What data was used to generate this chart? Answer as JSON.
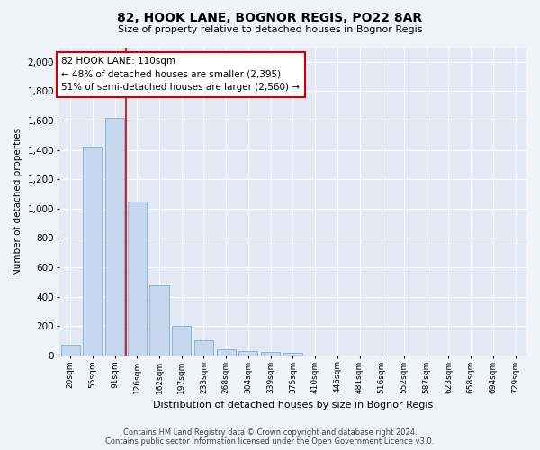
{
  "title1": "82, HOOK LANE, BOGNOR REGIS, PO22 8AR",
  "title2": "Size of property relative to detached houses in Bognor Regis",
  "xlabel": "Distribution of detached houses by size in Bognor Regis",
  "ylabel": "Number of detached properties",
  "categories": [
    "20sqm",
    "55sqm",
    "91sqm",
    "126sqm",
    "162sqm",
    "197sqm",
    "233sqm",
    "268sqm",
    "304sqm",
    "339sqm",
    "375sqm",
    "410sqm",
    "446sqm",
    "481sqm",
    "516sqm",
    "552sqm",
    "587sqm",
    "623sqm",
    "658sqm",
    "694sqm",
    "729sqm"
  ],
  "values": [
    75,
    1420,
    1620,
    1050,
    480,
    200,
    100,
    40,
    30,
    20,
    15,
    0,
    0,
    0,
    0,
    0,
    0,
    0,
    0,
    0,
    0
  ],
  "bar_color": "#c5d8ed",
  "bar_edge_color": "#7aadd4",
  "vline_color": "#cc0000",
  "annotation_text": "82 HOOK LANE: 110sqm\n← 48% of detached houses are smaller (2,395)\n51% of semi-detached houses are larger (2,560) →",
  "annotation_box_color": "#ffffff",
  "annotation_box_edge": "#cc0000",
  "footer1": "Contains HM Land Registry data © Crown copyright and database right 2024.",
  "footer2": "Contains public sector information licensed under the Open Government Licence v3.0.",
  "ylim": [
    0,
    2100
  ],
  "yticks": [
    0,
    200,
    400,
    600,
    800,
    1000,
    1200,
    1400,
    1600,
    1800,
    2000
  ],
  "bg_color": "#f0f4fa",
  "plot_bg": "#e4eaf5"
}
